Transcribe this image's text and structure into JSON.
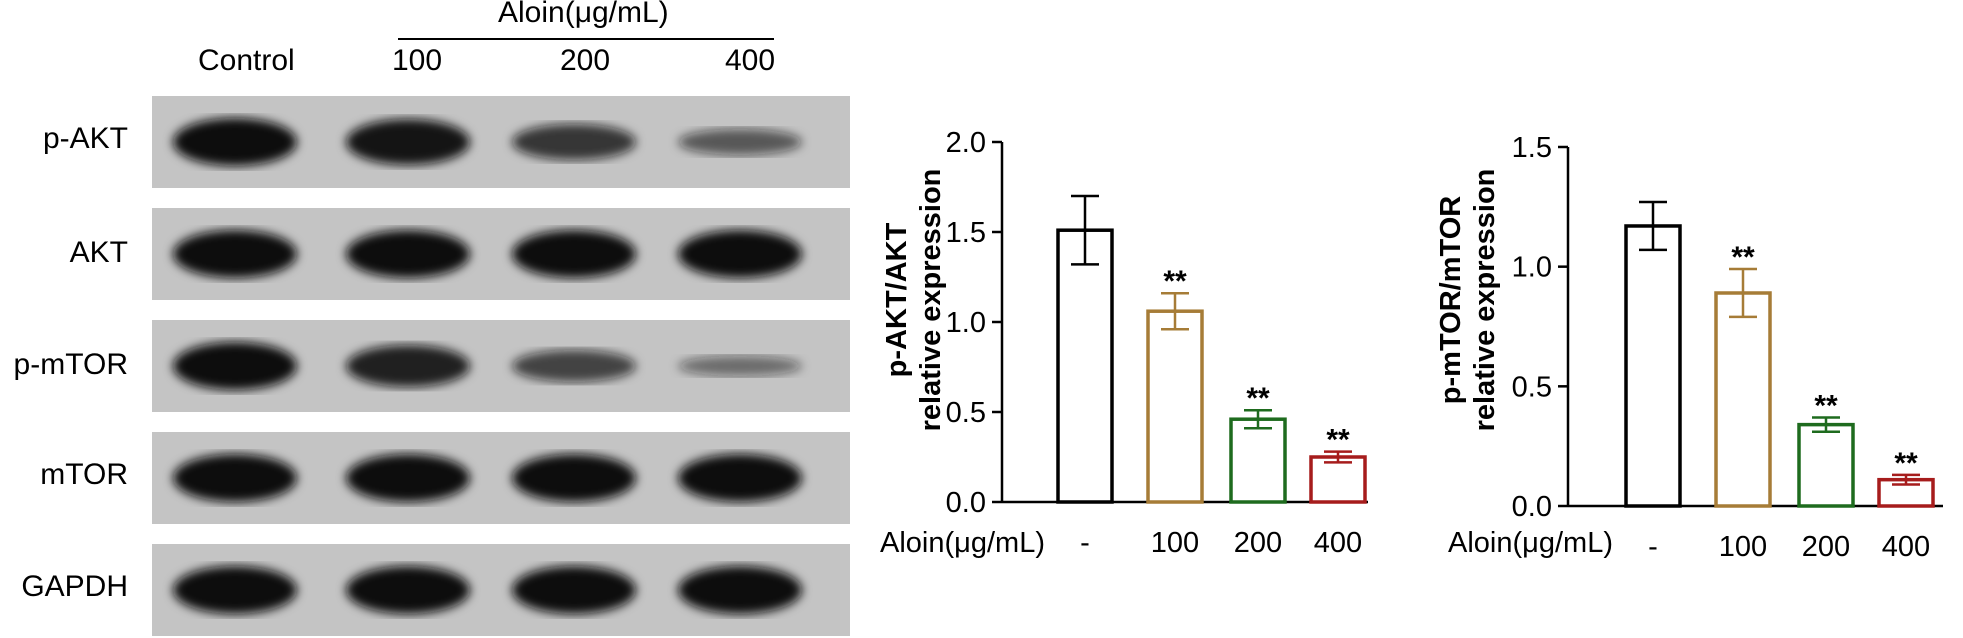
{
  "blot": {
    "treatment_label": "Aloin(μg/mL)",
    "lanes": [
      "Control",
      "100",
      "200",
      "400"
    ],
    "rows": [
      {
        "label": "p-AKT",
        "intensity": [
          1.0,
          0.95,
          0.7,
          0.45
        ]
      },
      {
        "label": "AKT",
        "intensity": [
          1.0,
          1.0,
          1.0,
          1.0
        ]
      },
      {
        "label": "p-mTOR",
        "intensity": [
          1.0,
          0.85,
          0.6,
          0.3
        ]
      },
      {
        "label": "mTOR",
        "intensity": [
          1.0,
          1.0,
          1.0,
          1.0
        ]
      },
      {
        "label": "GAPDH",
        "intensity": [
          1.0,
          1.0,
          1.0,
          1.0
        ]
      }
    ]
  },
  "colors": {
    "control": "#000000",
    "dose100": "#A67C37",
    "dose200": "#1E6B1E",
    "dose400": "#A61C1C"
  },
  "chart_data": [
    {
      "type": "bar",
      "ylabel_line1": "p-AKT/AKT",
      "ylabel_line2": "relative expression",
      "xlabel": "Aloin(μg/mL)",
      "categories": [
        "-",
        "100",
        "200",
        "400"
      ],
      "values": [
        1.51,
        1.06,
        0.46,
        0.25
      ],
      "errors": [
        0.19,
        0.1,
        0.05,
        0.03
      ],
      "significance": [
        "",
        "**",
        "**",
        "**"
      ],
      "ylim": [
        0,
        2.0
      ],
      "yticks": [
        0.0,
        0.5,
        1.0,
        1.5,
        2.0
      ],
      "ytick_labels": [
        "0.0",
        "0.5",
        "1.0",
        "1.5",
        "2.0"
      ]
    },
    {
      "type": "bar",
      "ylabel_line1": "p-mTOR/mTOR",
      "ylabel_line2": "relative expression",
      "xlabel": "Aloin(μg/mL)",
      "categories": [
        "-",
        "100",
        "200",
        "400"
      ],
      "values": [
        1.17,
        0.89,
        0.34,
        0.11
      ],
      "errors": [
        0.1,
        0.1,
        0.03,
        0.02
      ],
      "significance": [
        "",
        "**",
        "**",
        "**"
      ],
      "ylim": [
        0,
        1.5
      ],
      "yticks": [
        0.0,
        0.5,
        1.0,
        1.5
      ],
      "ytick_labels": [
        "0.0",
        "0.5",
        "1.0",
        "1.5"
      ]
    }
  ]
}
